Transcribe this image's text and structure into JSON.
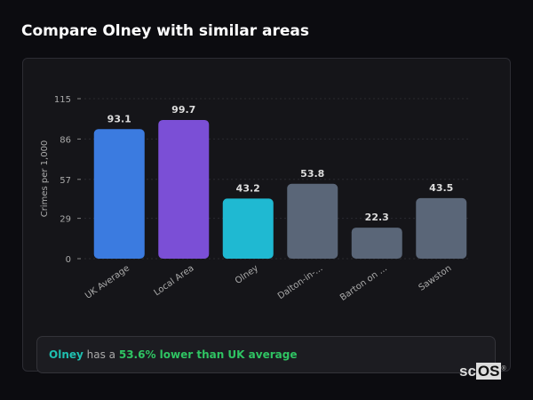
{
  "title": "Compare Olney with similar areas",
  "chart_data": {
    "type": "bar",
    "ylabel": "Crimes per 1,000",
    "ylim": [
      0,
      115
    ],
    "yticks": [
      0,
      29,
      57,
      86,
      115
    ],
    "grid": true,
    "categories": [
      "UK Average",
      "Local Area",
      "Olney",
      "Dalton-in-...",
      "Barton on ...",
      "Sawston"
    ],
    "values": [
      93.1,
      99.7,
      43.2,
      53.8,
      22.3,
      43.5
    ],
    "colors": [
      "#3b7be0",
      "#7b4fd6",
      "#1fb9d2",
      "#5a6678",
      "#5a6678",
      "#5a6678"
    ]
  },
  "summary": {
    "area": "Olney",
    "middle": " has a ",
    "highlight": "53.6% lower than UK average"
  },
  "logo": {
    "text1": "sc",
    "text2": "OS"
  }
}
